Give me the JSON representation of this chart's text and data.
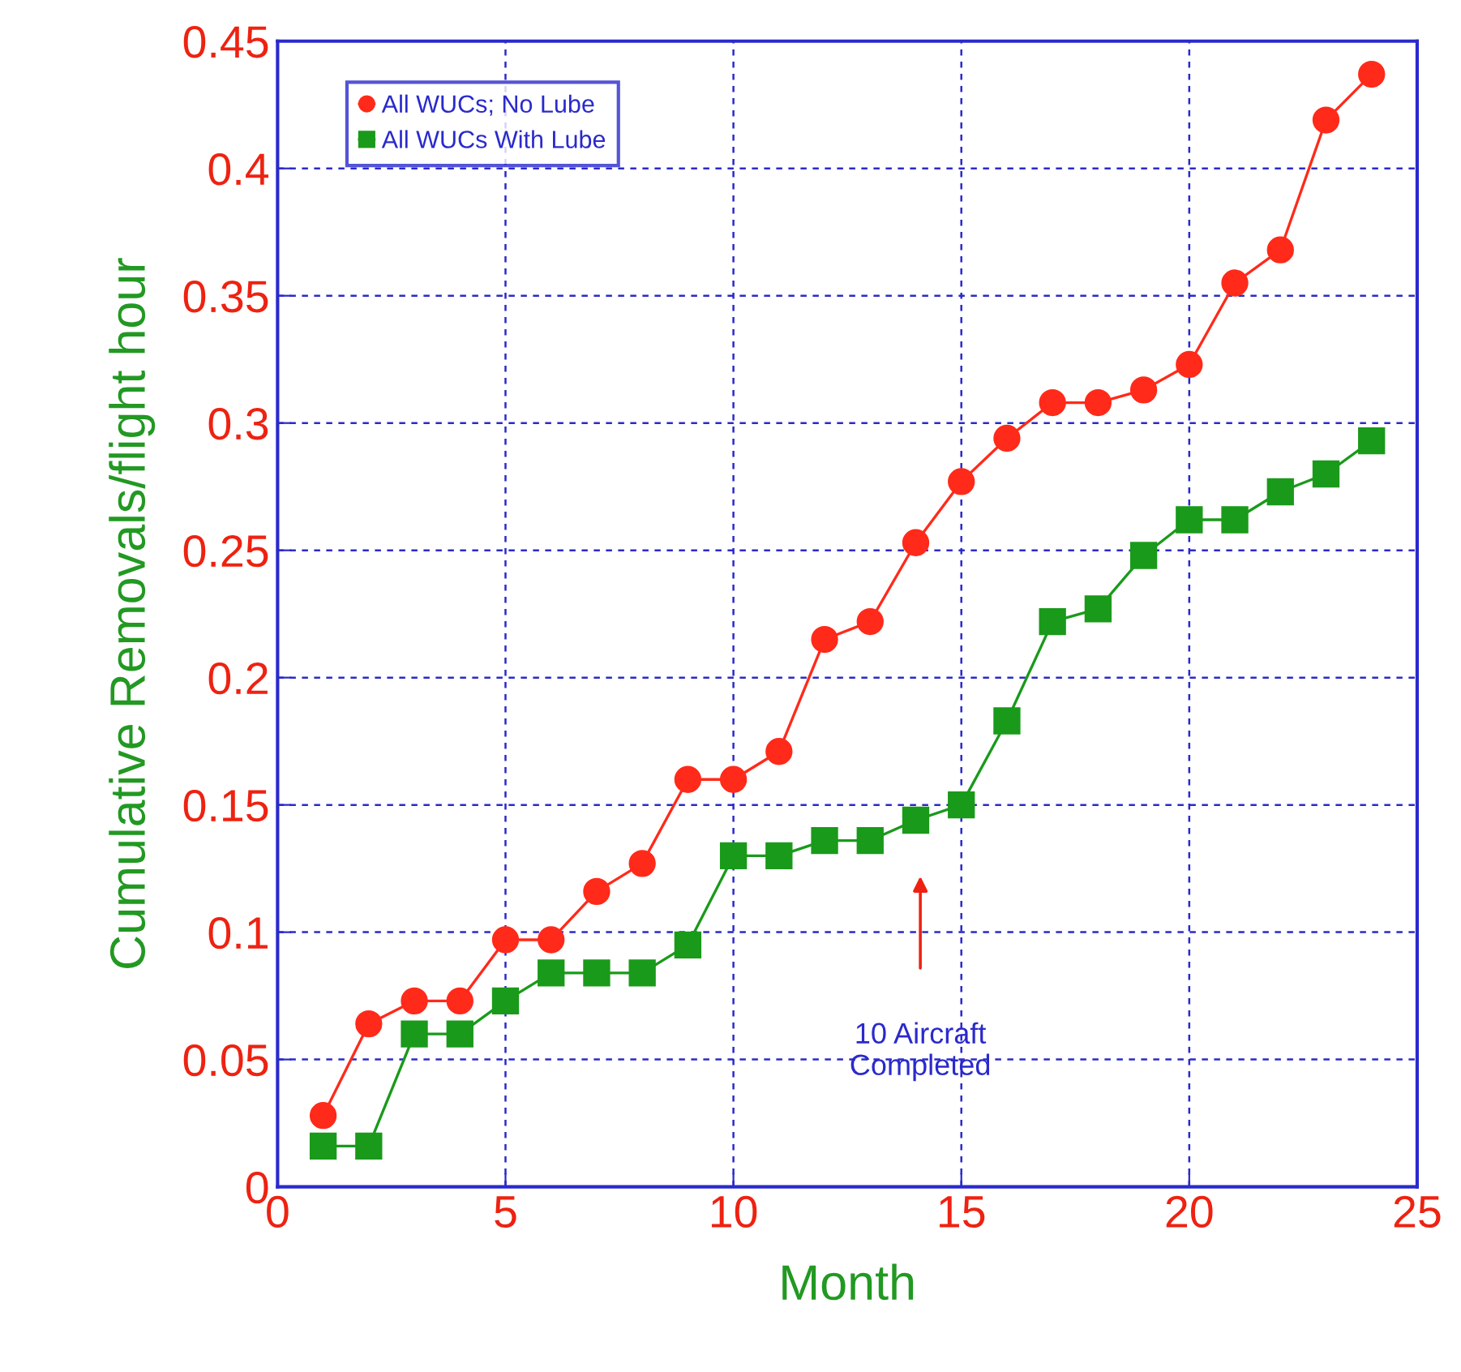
{
  "chart_data": {
    "type": "line",
    "xlabel": "Month",
    "ylabel": "Cumulative Removals/flight hour",
    "x": [
      1,
      2,
      3,
      4,
      5,
      6,
      7,
      8,
      9,
      10,
      11,
      12,
      13,
      14,
      15,
      16,
      17,
      18,
      19,
      20,
      21,
      22,
      23,
      24
    ],
    "series": [
      {
        "name": "All WUCs; No Lube",
        "color": "#ff2a1a",
        "marker": "circle",
        "values": [
          0.028,
          0.064,
          0.073,
          0.073,
          0.097,
          0.097,
          0.116,
          0.127,
          0.16,
          0.16,
          0.171,
          0.215,
          0.222,
          0.253,
          0.277,
          0.294,
          0.308,
          0.308,
          0.313,
          0.323,
          0.355,
          0.368,
          0.419,
          0.437
        ]
      },
      {
        "name": "All WUCs With Lube",
        "color": "#1a9a1a",
        "marker": "square",
        "values": [
          0.016,
          0.016,
          0.06,
          0.06,
          0.073,
          0.084,
          0.084,
          0.084,
          0.095,
          0.13,
          0.13,
          0.136,
          0.136,
          0.144,
          0.15,
          0.183,
          0.222,
          0.227,
          0.248,
          0.262,
          0.262,
          0.273,
          0.28,
          0.293
        ]
      }
    ],
    "xlim": [
      0,
      25
    ],
    "xticks": [
      0,
      5,
      10,
      15,
      20,
      25
    ],
    "ylim": [
      0,
      0.45
    ],
    "yticks": [
      0,
      0.05,
      0.1,
      0.15,
      0.2,
      0.25,
      0.3,
      0.35,
      0.4,
      0.45
    ],
    "grid": true,
    "legend": "top left",
    "line_style": "solid",
    "annotations": [
      "10 Aircraft\nCompleted"
    ]
  }
}
